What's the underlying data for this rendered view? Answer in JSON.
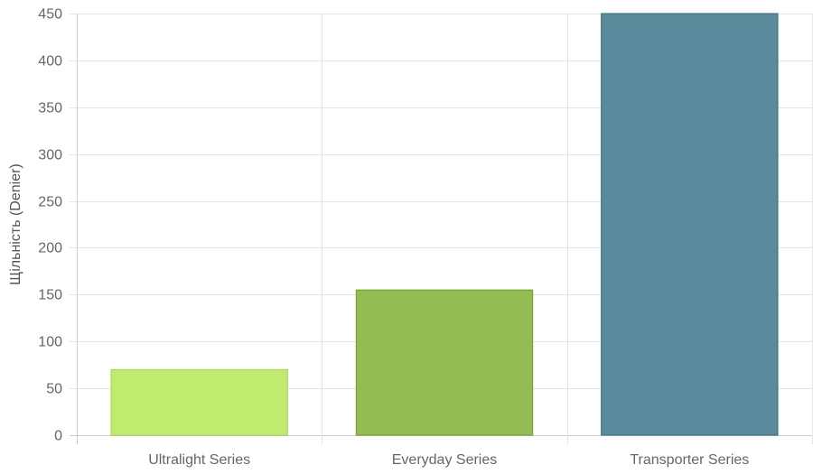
{
  "chart_data": {
    "type": "bar",
    "categories": [
      "Ultralight Series",
      "Everyday Series",
      "Transporter Series"
    ],
    "values": [
      70,
      155,
      450
    ],
    "ylabel": "Щільність (Denier)",
    "xlabel": "",
    "ylim": [
      0,
      450
    ],
    "yticks": [
      0,
      50,
      100,
      150,
      200,
      250,
      300,
      350,
      400,
      450
    ],
    "grid": true,
    "legend": "none",
    "colors": {
      "fill": [
        "#bfeb6e",
        "#93bd52",
        "#598b9c"
      ],
      "stroke": [
        "#a3d94a",
        "#6f9c22",
        "#2e6e7e"
      ],
      "grid": "#e5e5e5",
      "axis": "#cccccc"
    }
  }
}
